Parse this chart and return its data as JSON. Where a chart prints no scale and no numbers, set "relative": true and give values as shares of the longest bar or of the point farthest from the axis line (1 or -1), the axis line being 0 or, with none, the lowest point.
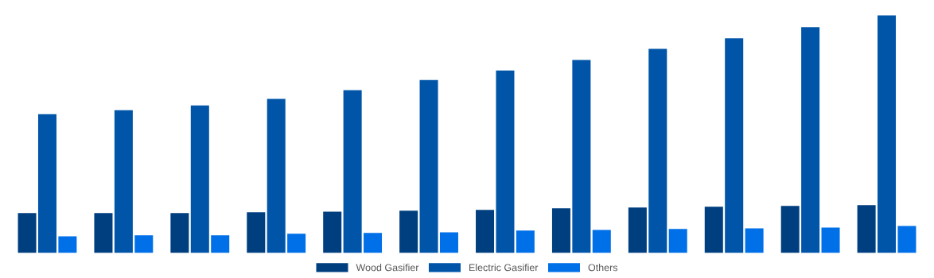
{
  "chart_data": {
    "type": "bar",
    "relative": true,
    "categories": [
      null,
      null,
      null,
      null,
      null,
      null,
      null,
      null,
      null,
      null,
      null,
      null
    ],
    "series": [
      {
        "name": "Wood Gasifier",
        "color": "#003f7f",
        "values": [
          0.168,
          0.168,
          0.168,
          0.171,
          0.174,
          0.178,
          0.181,
          0.188,
          0.191,
          0.195,
          0.198,
          0.201
        ]
      },
      {
        "name": "Electric Gasifier",
        "color": "#0055a8",
        "values": [
          0.584,
          0.601,
          0.621,
          0.648,
          0.685,
          0.728,
          0.768,
          0.812,
          0.859,
          0.903,
          0.95,
          1
        ]
      },
      {
        "name": "Others",
        "color": "#0070e8",
        "values": [
          0.07,
          0.074,
          0.074,
          0.081,
          0.084,
          0.087,
          0.094,
          0.097,
          0.101,
          0.104,
          0.107,
          0.114
        ]
      }
    ],
    "legend": "bottom",
    "grid": false
  }
}
